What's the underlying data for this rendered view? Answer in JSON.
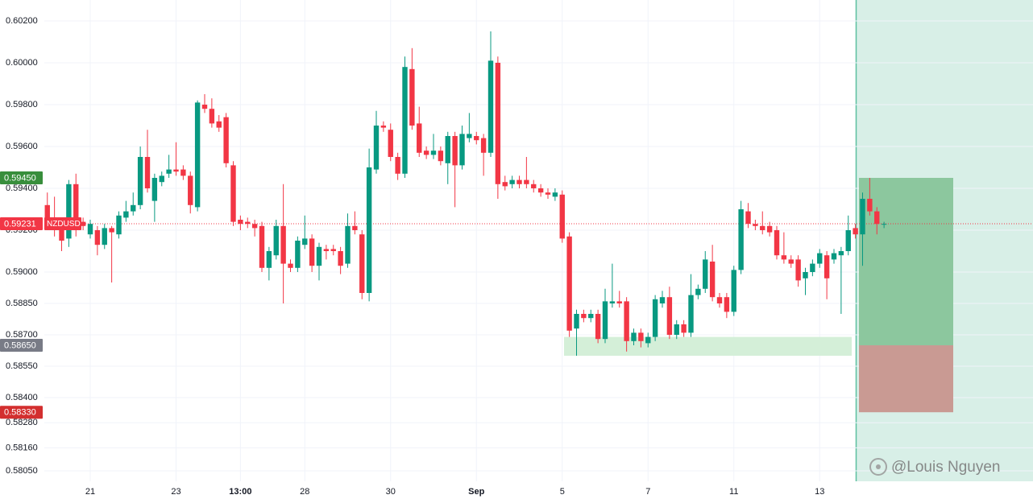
{
  "chart_data": {
    "type": "candlestick",
    "up_color": "#089981",
    "down_color": "#f23645",
    "grid": true,
    "categories": [
      null,
      null,
      null,
      null,
      null,
      null,
      "21",
      null,
      null,
      null,
      null,
      null,
      null,
      null,
      null,
      null,
      null,
      null,
      "23",
      null,
      null,
      null,
      null,
      null,
      null,
      null,
      null,
      "13:00",
      null,
      null,
      null,
      null,
      null,
      null,
      null,
      null,
      "28",
      null,
      null,
      null,
      null,
      null,
      null,
      null,
      null,
      null,
      null,
      null,
      "30",
      null,
      null,
      null,
      null,
      null,
      null,
      null,
      null,
      null,
      null,
      null,
      "Sep",
      null,
      null,
      null,
      null,
      null,
      null,
      null,
      null,
      null,
      null,
      null,
      "5",
      null,
      null,
      null,
      null,
      null,
      null,
      null,
      null,
      null,
      null,
      null,
      "7",
      null,
      null,
      null,
      null,
      null,
      null,
      null,
      null,
      null,
      null,
      null,
      "11",
      null,
      null,
      null,
      null,
      null,
      null,
      null,
      null,
      null,
      null,
      null,
      "13",
      null,
      null,
      null,
      null,
      null,
      null,
      null,
      null,
      null
    ],
    "open": [
      0.5932,
      0.5925,
      0.5921,
      0.5916,
      0.5942,
      0.5924,
      0.5918,
      0.592,
      0.5913,
      0.5921,
      0.5918,
      0.5926,
      0.5929,
      0.5932,
      0.5955,
      0.5934,
      0.5943,
      0.5947,
      0.5949,
      0.5949,
      0.5946,
      0.5931,
      0.598,
      0.5978,
      0.5972,
      0.5974,
      0.5951,
      0.5925,
      0.5924,
      0.5923,
      0.5922,
      0.5902,
      0.5908,
      0.5922,
      0.5904,
      0.5902,
      0.5913,
      0.5916,
      0.5903,
      0.5911,
      0.5911,
      0.591,
      0.5904,
      0.5922,
      0.5918,
      0.589,
      0.5949,
      0.597,
      0.5968,
      0.5955,
      0.5947,
      0.5997,
      0.5971,
      0.5958,
      0.5956,
      0.5958,
      0.5952,
      0.5965,
      0.5951,
      0.5964,
      0.5965,
      0.5964,
      0.5957,
      0.6,
      0.5943,
      0.5942,
      0.5944,
      0.5944,
      0.5942,
      0.594,
      0.5938,
      0.5936,
      0.5937,
      0.5917,
      0.5873,
      0.588,
      0.5878,
      0.588,
      0.5868,
      0.5885,
      0.5886,
      0.5886,
      0.5867,
      0.5871,
      0.5866,
      0.5869,
      0.5885,
      0.5888,
      0.587,
      0.5875,
      0.5871,
      0.5889,
      0.5892,
      0.5905,
      0.5888,
      0.5888,
      0.5881,
      0.5901,
      0.5929,
      0.5923,
      0.5922,
      0.5922,
      0.592,
      0.5908,
      0.5906,
      0.5906,
      0.5897,
      0.59,
      0.5904,
      0.5908,
      0.5906,
      0.5908,
      0.591,
      0.5921,
      0.5918,
      0.5935,
      0.5929,
      0.5923
    ],
    "high": [
      0.5938,
      0.5936,
      0.5923,
      0.5944,
      0.5947,
      0.5926,
      0.5925,
      0.5922,
      0.5923,
      0.5922,
      0.5929,
      0.5934,
      0.5938,
      0.596,
      0.5968,
      0.5947,
      0.5948,
      0.5956,
      0.5962,
      0.5951,
      0.5948,
      0.5982,
      0.5985,
      0.5983,
      0.5975,
      0.5976,
      0.5953,
      0.5927,
      0.5926,
      0.5925,
      0.5924,
      0.5912,
      0.5925,
      0.5942,
      0.5906,
      0.5917,
      0.5927,
      0.5918,
      0.5914,
      0.5913,
      0.5913,
      0.5912,
      0.5928,
      0.5929,
      0.592,
      0.5959,
      0.5977,
      0.5972,
      0.5971,
      0.5957,
      0.6003,
      0.6007,
      0.5979,
      0.596,
      0.5966,
      0.596,
      0.5967,
      0.5967,
      0.597,
      0.5976,
      0.5967,
      0.5966,
      0.6015,
      0.6003,
      0.5946,
      0.5946,
      0.5946,
      0.5955,
      0.5944,
      0.5942,
      0.594,
      0.594,
      0.5939,
      0.5919,
      0.5882,
      0.5882,
      0.5882,
      0.5882,
      0.5892,
      0.5904,
      0.5891,
      0.5888,
      0.5873,
      0.5873,
      0.5871,
      0.5889,
      0.5891,
      0.5893,
      0.5877,
      0.5877,
      0.5899,
      0.5894,
      0.591,
      0.5913,
      0.589,
      0.589,
      0.5903,
      0.5934,
      0.5933,
      0.5925,
      0.5929,
      0.5924,
      0.5922,
      0.5919,
      0.5908,
      0.5908,
      0.5902,
      0.5906,
      0.5911,
      0.591,
      0.5911,
      0.5912,
      0.5927,
      0.5923,
      0.5938,
      0.5945,
      0.5931,
      0.5924
    ],
    "low": [
      0.592,
      0.5917,
      0.591,
      0.5912,
      0.5917,
      0.592,
      0.5916,
      0.5908,
      0.5911,
      0.5895,
      0.5916,
      0.5924,
      0.5927,
      0.593,
      0.5938,
      0.5924,
      0.5941,
      0.5945,
      0.5946,
      0.5944,
      0.5928,
      0.5929,
      0.5976,
      0.5969,
      0.5967,
      0.595,
      0.5922,
      0.592,
      0.5921,
      0.5917,
      0.59,
      0.5896,
      0.5906,
      0.5885,
      0.59,
      0.59,
      0.5911,
      0.59,
      0.5896,
      0.5906,
      0.5908,
      0.5899,
      0.5902,
      0.5918,
      0.5887,
      0.5886,
      0.5947,
      0.5967,
      0.5953,
      0.5944,
      0.5945,
      0.5968,
      0.5955,
      0.5954,
      0.5954,
      0.5951,
      0.5942,
      0.5931,
      0.5949,
      0.5962,
      0.5961,
      0.5946,
      0.5955,
      0.5935,
      0.5939,
      0.594,
      0.594,
      0.594,
      0.5938,
      0.5936,
      0.5935,
      0.5934,
      0.5914,
      0.5869,
      0.586,
      0.5876,
      0.5876,
      0.5866,
      0.5866,
      0.5883,
      0.5883,
      0.5862,
      0.5865,
      0.5864,
      0.5864,
      0.5867,
      0.5883,
      0.5868,
      0.5868,
      0.5869,
      0.5869,
      0.5887,
      0.589,
      0.5886,
      0.5883,
      0.5878,
      0.5879,
      0.5899,
      0.5921,
      0.592,
      0.5918,
      0.5917,
      0.5906,
      0.5904,
      0.5902,
      0.5893,
      0.5889,
      0.5898,
      0.5902,
      0.5887,
      0.5904,
      0.588,
      0.5908,
      0.5916,
      0.5903,
      0.5927,
      0.5918,
      0.5921
    ],
    "close": [
      0.5925,
      0.592,
      0.5915,
      0.5942,
      0.592,
      0.5922,
      0.5923,
      0.5913,
      0.5921,
      0.5919,
      0.5927,
      0.5929,
      0.5932,
      0.5955,
      0.594,
      0.5945,
      0.5946,
      0.5949,
      0.5948,
      0.5946,
      0.5932,
      0.5981,
      0.5978,
      0.5971,
      0.5969,
      0.5952,
      0.5924,
      0.5923,
      0.5923,
      0.5921,
      0.5902,
      0.591,
      0.5922,
      0.5904,
      0.5902,
      0.5915,
      0.5916,
      0.5903,
      0.5912,
      0.591,
      0.591,
      0.5903,
      0.5922,
      0.592,
      0.589,
      0.595,
      0.597,
      0.5969,
      0.5955,
      0.5947,
      0.5998,
      0.597,
      0.5957,
      0.5956,
      0.5958,
      0.5953,
      0.5965,
      0.5951,
      0.5966,
      0.5966,
      0.5963,
      0.5957,
      0.6001,
      0.5942,
      0.5941,
      0.5944,
      0.5942,
      0.5942,
      0.594,
      0.5938,
      0.5937,
      0.5938,
      0.5916,
      0.5872,
      0.588,
      0.5878,
      0.588,
      0.5868,
      0.5886,
      0.5886,
      0.5885,
      0.5867,
      0.5871,
      0.5867,
      0.5869,
      0.5887,
      0.5888,
      0.587,
      0.5875,
      0.5871,
      0.5889,
      0.5892,
      0.5906,
      0.5888,
      0.5885,
      0.5881,
      0.5901,
      0.593,
      0.5923,
      0.5922,
      0.592,
      0.5919,
      0.5908,
      0.5906,
      0.5904,
      0.5896,
      0.59,
      0.5904,
      0.5909,
      0.5897,
      0.5909,
      0.591,
      0.592,
      0.5918,
      0.5935,
      0.5929,
      0.5923,
      0.5923
    ],
    "ylim": [
      0.58,
      0.603
    ],
    "yticks": [
      {
        "value": 0.602,
        "label": "0.60200"
      },
      {
        "value": 0.6,
        "label": "0.60000"
      },
      {
        "value": 0.598,
        "label": "0.59800"
      },
      {
        "value": 0.596,
        "label": "0.59600"
      },
      {
        "value": 0.594,
        "label": "0.59400"
      },
      {
        "value": 0.592,
        "label": "0.59200"
      },
      {
        "value": 0.59,
        "label": "0.59000"
      },
      {
        "value": 0.5885,
        "label": "0.58850"
      },
      {
        "value": 0.587,
        "label": "0.58700"
      },
      {
        "value": 0.5855,
        "label": "0.58550"
      },
      {
        "value": 0.584,
        "label": "0.58400"
      },
      {
        "value": 0.5828,
        "label": "0.58280"
      },
      {
        "value": 0.5816,
        "label": "0.58160"
      },
      {
        "value": 0.5805,
        "label": "0.58050"
      }
    ],
    "last_price": {
      "value": 0.59231,
      "label": "0.59231",
      "symbol": "NZDUSD",
      "color": "#f23645"
    },
    "zone": {
      "from": 0.586,
      "to": 0.5869,
      "color": "#d4efd8"
    },
    "position": {
      "target": {
        "value": 0.5945,
        "label": "0.59450",
        "color": "#388e3c"
      },
      "entry": {
        "value": 0.5865,
        "label": "0.58650",
        "color": "#787b86"
      },
      "stop": {
        "value": 0.5833,
        "label": "0.58330",
        "color": "#d32f2f"
      },
      "profit_color": "#8cc79e",
      "loss_color": "#c99a93"
    },
    "watermark": "@Louis Nguyen"
  }
}
